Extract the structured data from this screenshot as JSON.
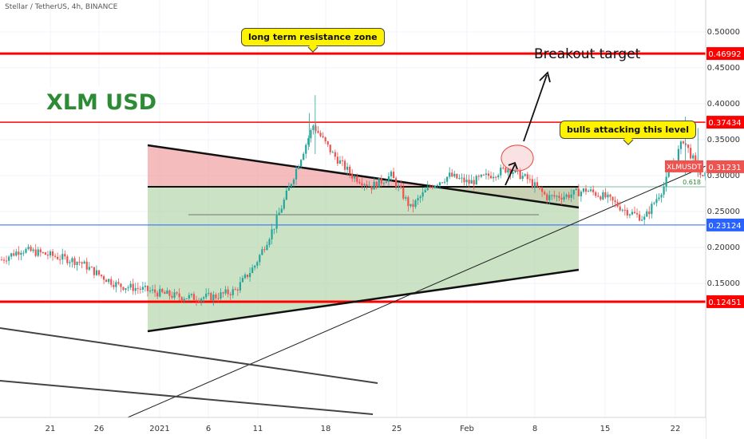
{
  "header": {
    "title": "Stellar / TetherUS, 4h, BINANCE"
  },
  "overlay": {
    "logo_text": "XLM USD",
    "resistance_note": "long term resistance zone",
    "bulls_note": "bulls attacking this level",
    "target_note": "Breakout target",
    "fib_label": "0.618"
  },
  "colors": {
    "up": "#26a69a",
    "down": "#ef5350",
    "red_line": "#ff0000",
    "blue_line": "#2962ff",
    "upper_zone": "#f0a5a5",
    "lower_zone": "#b9d8b0",
    "bubble": "#fff200",
    "logo": "#2e8b35"
  },
  "chart_data": {
    "type": "candlestick",
    "title": "Stellar / TetherUS, 4h, BINANCE",
    "y_axis": {
      "range": [
        0.1,
        0.52
      ],
      "ticks": [
        "0.50000",
        "0.45000",
        "0.40000",
        "0.35000",
        "0.30000",
        "0.25000",
        "0.20000",
        "0.15000"
      ]
    },
    "x_axis": {
      "ticks": [
        "21",
        "26",
        "2021",
        "6",
        "11",
        "18",
        "25",
        "Feb",
        "8",
        "15",
        "22"
      ]
    },
    "price_labels": [
      {
        "text": "0.46992",
        "value": 0.46992,
        "style": "red"
      },
      {
        "text": "0.37434",
        "value": 0.37434,
        "style": "red"
      },
      {
        "text": "XLMUSDT",
        "value": 0.31231,
        "style": "symbol"
      },
      {
        "text": "0.31231",
        "value": 0.31231,
        "style": "current"
      },
      {
        "text": "0.23124",
        "value": 0.23124,
        "style": "blue"
      },
      {
        "text": "0.12451",
        "value": 0.12451,
        "style": "red"
      }
    ],
    "levels": [
      {
        "value": 0.46992,
        "color": "red",
        "weight": "thick"
      },
      {
        "value": 0.37434,
        "color": "red",
        "weight": "thin"
      },
      {
        "value": 0.23124,
        "color": "blue",
        "weight": "thin"
      },
      {
        "value": 0.12451,
        "color": "red",
        "weight": "thick"
      },
      {
        "value": 0.2845,
        "color": "fib",
        "label": "0.618"
      }
    ],
    "price_path": [
      [
        16,
        0.183
      ],
      [
        18,
        0.197
      ],
      [
        20,
        0.192
      ],
      [
        22,
        0.186
      ],
      [
        24,
        0.18
      ],
      [
        26,
        0.162
      ],
      [
        28,
        0.147
      ],
      [
        30,
        0.143
      ],
      [
        32,
        0.137
      ],
      [
        34,
        0.132
      ],
      [
        36,
        0.13
      ],
      [
        38,
        0.132
      ],
      [
        40,
        0.14
      ],
      [
        42,
        0.175
      ],
      [
        44,
        0.23
      ],
      [
        46,
        0.3
      ],
      [
        48,
        0.37
      ],
      [
        50,
        0.33
      ],
      [
        52,
        0.3
      ],
      [
        54,
        0.285
      ],
      [
        56,
        0.3
      ],
      [
        58,
        0.255
      ],
      [
        60,
        0.285
      ],
      [
        62,
        0.3
      ],
      [
        64,
        0.29
      ],
      [
        66,
        0.3
      ],
      [
        68,
        0.31
      ],
      [
        70,
        0.295
      ],
      [
        72,
        0.27
      ],
      [
        74,
        0.272
      ],
      [
        76,
        0.28
      ],
      [
        78,
        0.27
      ],
      [
        80,
        0.252
      ],
      [
        82,
        0.24
      ],
      [
        84,
        0.285
      ],
      [
        86,
        0.35
      ],
      [
        88,
        0.295
      ],
      [
        90,
        0.33
      ],
      [
        91,
        0.312
      ]
    ]
  }
}
